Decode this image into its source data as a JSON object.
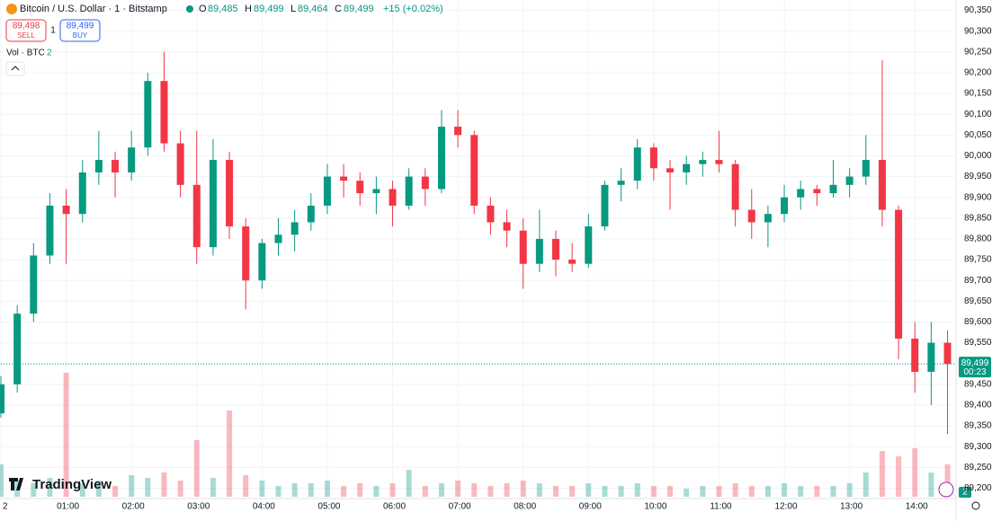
{
  "header": {
    "symbol": "Bitcoin / U.S. Dollar · 1 · Bitstamp",
    "o_label": "O",
    "open": "89,485",
    "h_label": "H",
    "high": "89,499",
    "l_label": "L",
    "low": "89,464",
    "c_label": "C",
    "close": "89,499",
    "change": "+15 (+0.02%)",
    "sell_price": "89,498",
    "sell_label": "SELL",
    "spread": "1",
    "buy_price": "89,499",
    "buy_label": "BUY",
    "volume_label": "Vol · BTC",
    "volume_param": "2",
    "logo": "TradingView",
    "countdown": "00:23",
    "badge": "2"
  },
  "chart_data": {
    "type": "candlestick",
    "up_color": "#089981",
    "down_color": "#f23645",
    "x": [
      0,
      15,
      30,
      45,
      60,
      75,
      90,
      105,
      120,
      135,
      150,
      165,
      180,
      195,
      210,
      225,
      240,
      255,
      270,
      285,
      300,
      315,
      330,
      345,
      360,
      375,
      390,
      405,
      420,
      435,
      450,
      465,
      480,
      495,
      510,
      525,
      540,
      555,
      570,
      585,
      600,
      615,
      630,
      645,
      660,
      675,
      690,
      705,
      720,
      735,
      750,
      765,
      780,
      795,
      810,
      825,
      840,
      855,
      870
    ],
    "ohlc": [
      [
        89380,
        89470,
        89370,
        89450
      ],
      [
        89450,
        89640,
        89430,
        89620
      ],
      [
        89620,
        89790,
        89600,
        89760
      ],
      [
        89760,
        89910,
        89740,
        89880
      ],
      [
        89880,
        89920,
        89740,
        89860
      ],
      [
        89860,
        89990,
        89840,
        89960
      ],
      [
        89960,
        90060,
        89930,
        89990
      ],
      [
        89990,
        90010,
        89900,
        89960
      ],
      [
        89960,
        90060,
        89940,
        90020
      ],
      [
        90020,
        90200,
        90000,
        90180
      ],
      [
        90180,
        90250,
        90010,
        90030
      ],
      [
        90030,
        90060,
        89900,
        89930
      ],
      [
        89930,
        90060,
        89740,
        89780
      ],
      [
        89780,
        90040,
        89760,
        89990
      ],
      [
        89990,
        90010,
        89800,
        89830
      ],
      [
        89830,
        89850,
        89630,
        89700
      ],
      [
        89700,
        89800,
        89680,
        89790
      ],
      [
        89790,
        89850,
        89760,
        89810
      ],
      [
        89810,
        89870,
        89770,
        89840
      ],
      [
        89840,
        89910,
        89820,
        89880
      ],
      [
        89880,
        89980,
        89860,
        89950
      ],
      [
        89950,
        89980,
        89900,
        89940
      ],
      [
        89940,
        89960,
        89880,
        89910
      ],
      [
        89910,
        89950,
        89860,
        89920
      ],
      [
        89920,
        89940,
        89830,
        89880
      ],
      [
        89880,
        89970,
        89870,
        89950
      ],
      [
        89950,
        89970,
        89880,
        89920
      ],
      [
        89920,
        90110,
        89910,
        90070
      ],
      [
        90070,
        90110,
        90020,
        90050
      ],
      [
        90050,
        90060,
        89860,
        89880
      ],
      [
        89880,
        89900,
        89810,
        89840
      ],
      [
        89840,
        89870,
        89780,
        89820
      ],
      [
        89820,
        89850,
        89680,
        89740
      ],
      [
        89740,
        89870,
        89720,
        89800
      ],
      [
        89800,
        89820,
        89710,
        89750
      ],
      [
        89750,
        89790,
        89720,
        89740
      ],
      [
        89740,
        89860,
        89730,
        89830
      ],
      [
        89830,
        89940,
        89820,
        89930
      ],
      [
        89930,
        89970,
        89890,
        89940
      ],
      [
        89940,
        90040,
        89920,
        90020
      ],
      [
        90020,
        90030,
        89940,
        89970
      ],
      [
        89970,
        89990,
        89870,
        89960
      ],
      [
        89960,
        90000,
        89930,
        89980
      ],
      [
        89980,
        90010,
        89950,
        89990
      ],
      [
        89990,
        90060,
        89960,
        89980
      ],
      [
        89980,
        89990,
        89830,
        89870
      ],
      [
        89870,
        89920,
        89800,
        89840
      ],
      [
        89840,
        89880,
        89780,
        89860
      ],
      [
        89860,
        89930,
        89840,
        89900
      ],
      [
        89900,
        89940,
        89870,
        89920
      ],
      [
        89920,
        89930,
        89880,
        89910
      ],
      [
        89910,
        89990,
        89900,
        89930
      ],
      [
        89930,
        89970,
        89900,
        89950
      ],
      [
        89950,
        90050,
        89930,
        89990
      ],
      [
        89990,
        90230,
        89830,
        89870
      ],
      [
        89870,
        89880,
        89510,
        89560
      ],
      [
        89560,
        89600,
        89430,
        89480
      ],
      [
        89480,
        89600,
        89400,
        89550
      ],
      [
        89550,
        89580,
        89330,
        89499
      ]
    ],
    "volume": [
      1.2,
      0.6,
      0.5,
      0.7,
      4.6,
      0.5,
      0.6,
      0.4,
      0.8,
      0.7,
      0.9,
      0.6,
      2.1,
      0.7,
      3.2,
      0.8,
      0.6,
      0.4,
      0.5,
      0.5,
      0.6,
      0.4,
      0.5,
      0.4,
      0.5,
      1.0,
      0.4,
      0.5,
      0.6,
      0.5,
      0.4,
      0.5,
      0.6,
      0.5,
      0.4,
      0.4,
      0.5,
      0.4,
      0.4,
      0.5,
      0.4,
      0.4,
      0.3,
      0.4,
      0.4,
      0.5,
      0.4,
      0.4,
      0.5,
      0.4,
      0.4,
      0.4,
      0.5,
      0.9,
      1.7,
      1.5,
      1.8,
      0.9,
      1.2
    ],
    "vlim": [
      0,
      8
    ],
    "last_price": {
      "value": 89499,
      "label": "89,499"
    },
    "xlim": [
      0,
      877
    ],
    "ylim": [
      89175,
      90375
    ],
    "xticks": [
      {
        "value": 0,
        "label": "2"
      },
      {
        "value": 60,
        "label": "01:00"
      },
      {
        "value": 120,
        "label": "02:00"
      },
      {
        "value": 180,
        "label": "03:00"
      },
      {
        "value": 240,
        "label": "04:00"
      },
      {
        "value": 300,
        "label": "05:00"
      },
      {
        "value": 360,
        "label": "06:00"
      },
      {
        "value": 420,
        "label": "07:00"
      },
      {
        "value": 480,
        "label": "08:00"
      },
      {
        "value": 540,
        "label": "09:00"
      },
      {
        "value": 600,
        "label": "10:00"
      },
      {
        "value": 660,
        "label": "11:00"
      },
      {
        "value": 720,
        "label": "12:00"
      },
      {
        "value": 780,
        "label": "13:00"
      },
      {
        "value": 840,
        "label": "14:00"
      }
    ],
    "yticks": [
      {
        "value": 89200,
        "label": "89,200"
      },
      {
        "value": 89250,
        "label": "89,250"
      },
      {
        "value": 89300,
        "label": "89,300"
      },
      {
        "value": 89350,
        "label": "89,350"
      },
      {
        "value": 89400,
        "label": "89,400"
      },
      {
        "value": 89450,
        "label": "89,450"
      },
      {
        "value": 89500,
        "label": "89,500"
      },
      {
        "value": 89550,
        "label": "89,550"
      },
      {
        "value": 89600,
        "label": "89,600"
      },
      {
        "value": 89650,
        "label": "89,650"
      },
      {
        "value": 89700,
        "label": "89,700"
      },
      {
        "value": 89750,
        "label": "89,750"
      },
      {
        "value": 89800,
        "label": "89,800"
      },
      {
        "value": 89850,
        "label": "89,850"
      },
      {
        "value": 89900,
        "label": "89,900"
      },
      {
        "value": 89950,
        "label": "89,950"
      },
      {
        "value": 90000,
        "label": "90,000"
      },
      {
        "value": 90050,
        "label": "90,050"
      },
      {
        "value": 90100,
        "label": "90,100"
      },
      {
        "value": 90150,
        "label": "90,150"
      },
      {
        "value": 90200,
        "label": "90,200"
      },
      {
        "value": 90250,
        "label": "90,250"
      },
      {
        "value": 90300,
        "label": "90,300"
      },
      {
        "value": 90350,
        "label": "90,350"
      }
    ],
    "grid": true
  }
}
